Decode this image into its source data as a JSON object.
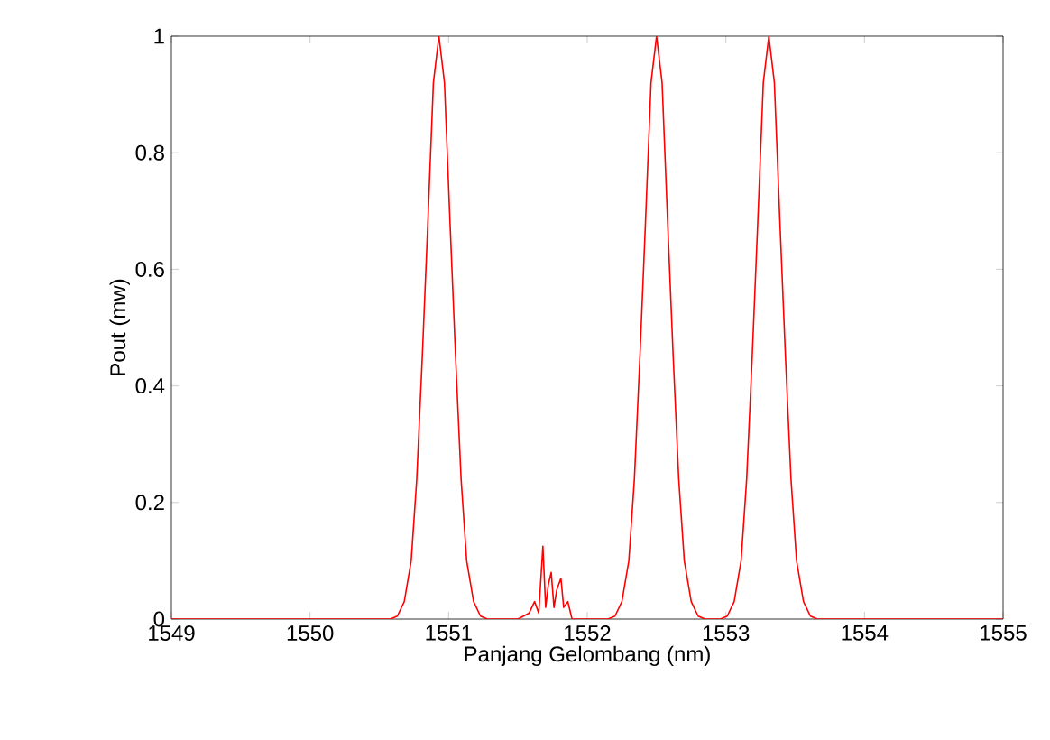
{
  "chart_data": {
    "type": "line",
    "xlabel": "Panjang Gelombang (nm)",
    "ylabel": "Pout (mw)",
    "xlim": [
      1549,
      1555
    ],
    "ylim": [
      0,
      1
    ],
    "xticks": [
      1549,
      1550,
      1551,
      1552,
      1553,
      1554,
      1555
    ],
    "yticks": [
      0,
      0.2,
      0.4,
      0.6,
      0.8,
      1
    ],
    "grid": false,
    "marker": "none",
    "line_style": "solid",
    "x": [
      1549,
      1550.58,
      1550.63,
      1550.68,
      1550.73,
      1550.77,
      1550.81,
      1550.85,
      1550.89,
      1550.93,
      1550.97,
      1551.01,
      1551.05,
      1551.09,
      1551.13,
      1551.18,
      1551.23,
      1551.28,
      1551.5,
      1551.58,
      1551.62,
      1551.65,
      1551.68,
      1551.7,
      1551.72,
      1551.74,
      1551.76,
      1551.78,
      1551.81,
      1551.83,
      1551.86,
      1551.89,
      1552.15,
      1552.2,
      1552.25,
      1552.3,
      1552.34,
      1552.38,
      1552.42,
      1552.46,
      1552.5,
      1552.54,
      1552.58,
      1552.62,
      1552.66,
      1552.7,
      1552.75,
      1552.8,
      1552.85,
      1552.96,
      1553.01,
      1553.06,
      1553.11,
      1553.15,
      1553.19,
      1553.23,
      1553.27,
      1553.31,
      1553.35,
      1553.39,
      1553.43,
      1553.47,
      1553.51,
      1553.56,
      1553.61,
      1553.66,
      1555
    ],
    "series": [
      {
        "color": "#ff0000",
        "values": [
          0,
          0,
          0.005,
          0.03,
          0.1,
          0.24,
          0.45,
          0.68,
          0.92,
          1,
          0.92,
          0.68,
          0.45,
          0.24,
          0.1,
          0.03,
          0.005,
          0,
          0,
          0.01,
          0.03,
          0.01,
          0.125,
          0.02,
          0.06,
          0.08,
          0.02,
          0.05,
          0.07,
          0.02,
          0.03,
          0,
          0,
          0.005,
          0.03,
          0.1,
          0.24,
          0.45,
          0.68,
          0.92,
          1,
          0.92,
          0.68,
          0.45,
          0.24,
          0.1,
          0.03,
          0.005,
          0,
          0,
          0.005,
          0.03,
          0.1,
          0.24,
          0.45,
          0.68,
          0.92,
          1,
          0.92,
          0.68,
          0.45,
          0.24,
          0.1,
          0.03,
          0.005,
          0,
          0
        ]
      }
    ]
  }
}
